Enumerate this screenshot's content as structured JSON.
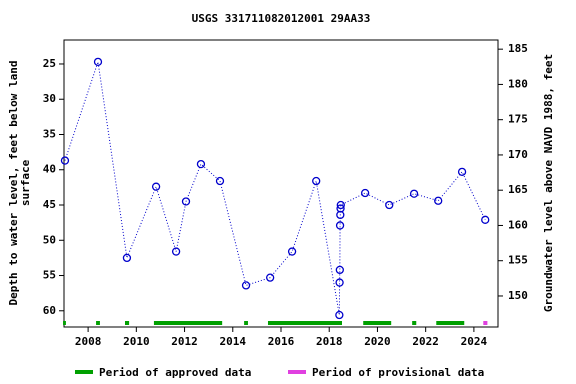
{
  "chart_data": {
    "type": "line",
    "title": "USGS 331711082012001 29AA33",
    "ylabel": [
      "Depth to water level, feet below land",
      "surface"
    ],
    "y2label": "Groundwater level above NAVD 1988, feet",
    "xlim": [
      2007,
      2025
    ],
    "xticks": [
      2008,
      2010,
      2012,
      2014,
      2016,
      2018,
      2020,
      2022,
      2024
    ],
    "ylim": [
      21.6,
      62.3
    ],
    "y_inverted": true,
    "yticks": [
      25,
      30,
      35,
      40,
      45,
      50,
      55,
      60
    ],
    "y2lim": [
      145.6,
      186.3
    ],
    "y2ticks": [
      150,
      155,
      160,
      165,
      170,
      175,
      180,
      185
    ],
    "series": [
      {
        "color": "#0000cc",
        "x": [
          2007.04,
          2008.41,
          2009.61,
          2010.82,
          2011.65,
          2012.06,
          2012.68,
          2013.47,
          2014.55,
          2015.55,
          2016.46,
          2017.46,
          2018.42,
          2018.43,
          2018.44,
          2018.45,
          2018.46,
          2018.47,
          2018.48,
          2019.49,
          2020.49,
          2021.52,
          2022.52,
          2023.51,
          2024.47
        ],
        "values": [
          38.7,
          24.7,
          52.5,
          42.4,
          51.6,
          44.5,
          39.2,
          41.6,
          56.4,
          55.3,
          51.6,
          41.6,
          60.6,
          56.0,
          54.2,
          47.9,
          46.4,
          45.5,
          45.0,
          43.3,
          45.0,
          43.4,
          44.4,
          40.3,
          47.1
        ]
      }
    ],
    "periods": [
      {
        "name": "Period of approved data",
        "color": "#00a000",
        "ranges": [
          [
            2006.96,
            2007.08
          ],
          [
            2008.33,
            2008.49
          ],
          [
            2009.53,
            2009.7
          ],
          [
            2010.73,
            2013.56
          ],
          [
            2014.47,
            2014.63
          ],
          [
            2015.46,
            2018.53
          ],
          [
            2019.41,
            2020.57
          ],
          [
            2021.44,
            2021.61
          ],
          [
            2022.44,
            2023.6
          ]
        ]
      },
      {
        "name": "Period of provisional data",
        "color": "#e040e0",
        "ranges": [
          [
            2024.39,
            2024.56
          ]
        ]
      }
    ]
  }
}
